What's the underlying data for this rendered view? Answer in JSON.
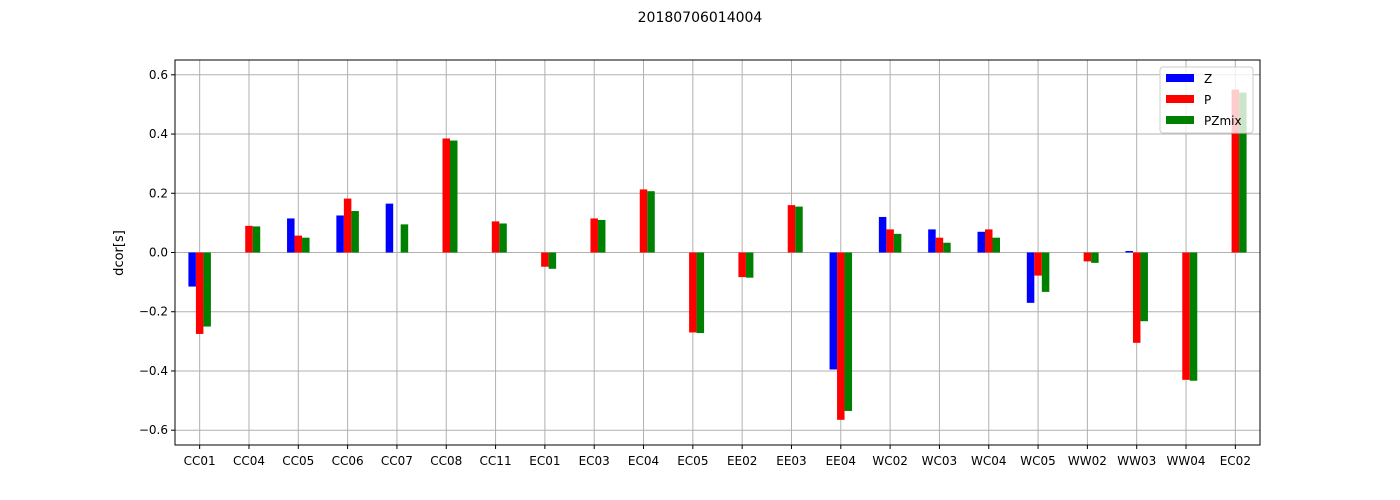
{
  "chart_data": {
    "type": "bar",
    "title": "20180706014004",
    "xlabel": "",
    "ylabel": "dcor[s]",
    "ylim": [
      -0.65,
      0.65
    ],
    "yticks": [
      -0.6,
      -0.4,
      -0.2,
      0.0,
      0.2,
      0.4,
      0.6
    ],
    "ytick_labels": [
      "−0.6",
      "−0.4",
      "−0.2",
      "0.0",
      "0.2",
      "0.4",
      "0.6"
    ],
    "grid": true,
    "legend_position": "top-right",
    "categories": [
      "CC01",
      "CC04",
      "CC05",
      "CC06",
      "CC07",
      "CC08",
      "CC11",
      "EC01",
      "EC03",
      "EC04",
      "EC05",
      "EE02",
      "EE03",
      "EE04",
      "WC02",
      "WC03",
      "WC04",
      "WC05",
      "WW02",
      "WW03",
      "WW04",
      "EC02"
    ],
    "series": [
      {
        "name": "Z",
        "color": "#0000ff",
        "values": [
          -0.115,
          null,
          0.115,
          0.125,
          0.165,
          null,
          null,
          null,
          null,
          null,
          null,
          null,
          null,
          -0.395,
          0.12,
          0.078,
          0.07,
          -0.17,
          null,
          0.005,
          null,
          null
        ]
      },
      {
        "name": "P",
        "color": "#ff0000",
        "values": [
          -0.275,
          0.09,
          0.057,
          0.182,
          null,
          0.385,
          0.105,
          -0.048,
          0.115,
          0.213,
          -0.27,
          -0.083,
          0.16,
          -0.565,
          0.078,
          0.05,
          0.078,
          -0.078,
          -0.03,
          -0.305,
          -0.43,
          0.55
        ]
      },
      {
        "name": "PZmix",
        "color": "#008000",
        "values": [
          -0.25,
          0.088,
          0.05,
          0.14,
          0.095,
          0.378,
          0.098,
          -0.055,
          0.11,
          0.207,
          -0.272,
          -0.085,
          0.155,
          -0.535,
          0.063,
          0.033,
          0.05,
          -0.133,
          -0.035,
          -0.232,
          -0.433,
          0.54
        ]
      }
    ]
  }
}
